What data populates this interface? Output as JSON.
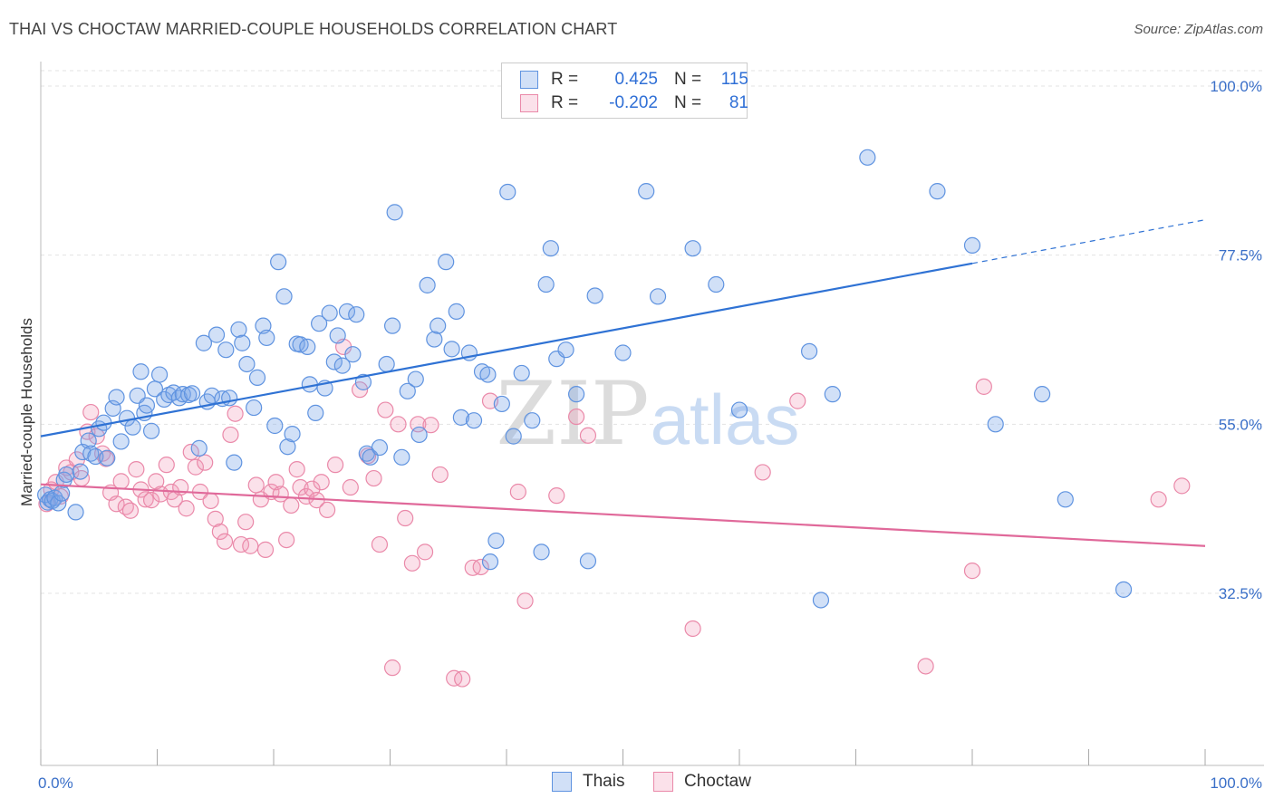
{
  "header": {
    "title": "THAI VS CHOCTAW MARRIED-COUPLE HOUSEHOLDS CORRELATION CHART",
    "source": "Source: ZipAtlas.com"
  },
  "legend": {
    "rows": [
      {
        "r_label": "R =",
        "r_value": "0.425",
        "n_label": "N =",
        "n_value": "115",
        "color": "#7aa7e8"
      },
      {
        "r_label": "R =",
        "r_value": "-0.202",
        "n_label": "N =",
        "n_value": "81",
        "color": "#f29bb8"
      }
    ]
  },
  "bottom_legend": {
    "items": [
      {
        "label": "Thais",
        "color": "#7aa7e8"
      },
      {
        "label": "Choctaw",
        "color": "#f29bb8"
      }
    ]
  },
  "colors": {
    "thai_fill": "rgba(122,167,232,0.35)",
    "thai_stroke": "#5f93e0",
    "thai_line": "#2f72d4",
    "choctaw_fill": "rgba(242,155,184,0.30)",
    "choctaw_stroke": "#ea89a9",
    "choctaw_line": "#e0699a",
    "grid": "#e3e3e3",
    "tick_label": "#3a6fc8"
  },
  "chart_data": {
    "type": "scatter",
    "title": "THAI VS CHOCTAW MARRIED-COUPLE HOUSEHOLDS CORRELATION CHART",
    "xlabel": "",
    "ylabel": "Married-couple Households",
    "xlim": [
      0,
      100
    ],
    "ylim": [
      12.5,
      102.5
    ],
    "x_tick_labels": [
      {
        "value": 0,
        "label": "0.0%"
      },
      {
        "value": 100,
        "label": "100.0%"
      }
    ],
    "y_tick_labels": [
      {
        "value": 100.0,
        "label": "100.0%"
      },
      {
        "value": 77.5,
        "label": "77.5%"
      },
      {
        "value": 55.0,
        "label": "55.0%"
      },
      {
        "value": 32.5,
        "label": "32.5%"
      }
    ],
    "watermark": {
      "zip": "ZIP",
      "atlas": "atlas"
    },
    "series": [
      {
        "name": "Thais",
        "r": 0.425,
        "n": 115,
        "trend": {
          "x0": 0,
          "y0": 53.4,
          "x1": 80,
          "y1": 76.4,
          "dash_to_x": 100,
          "dash_to_y": 82.2
        },
        "points": [
          [
            0.4,
            45.6
          ],
          [
            0.6,
            44.6
          ],
          [
            0.8,
            45.0
          ],
          [
            1.0,
            44.8
          ],
          [
            1.2,
            45.2
          ],
          [
            1.5,
            44.5
          ],
          [
            1.8,
            45.8
          ],
          [
            2.0,
            47.6
          ],
          [
            2.2,
            48.3
          ],
          [
            3.0,
            43.3
          ],
          [
            3.4,
            48.7
          ],
          [
            3.6,
            51.3
          ],
          [
            4.1,
            52.8
          ],
          [
            4.3,
            51.1
          ],
          [
            4.7,
            50.7
          ],
          [
            5.0,
            54.4
          ],
          [
            5.4,
            55.2
          ],
          [
            5.7,
            50.5
          ],
          [
            6.2,
            57.1
          ],
          [
            6.5,
            58.6
          ],
          [
            6.9,
            52.7
          ],
          [
            7.4,
            55.8
          ],
          [
            7.9,
            54.6
          ],
          [
            8.3,
            58.8
          ],
          [
            8.6,
            62.0
          ],
          [
            8.9,
            56.5
          ],
          [
            9.1,
            57.5
          ],
          [
            9.5,
            54.1
          ],
          [
            9.8,
            59.7
          ],
          [
            10.2,
            61.6
          ],
          [
            10.6,
            58.3
          ],
          [
            11.0,
            58.9
          ],
          [
            11.4,
            59.2
          ],
          [
            11.9,
            58.5
          ],
          [
            12.2,
            59.0
          ],
          [
            12.7,
            58.9
          ],
          [
            13.0,
            59.1
          ],
          [
            13.6,
            51.8
          ],
          [
            14.0,
            65.8
          ],
          [
            14.3,
            58.0
          ],
          [
            14.7,
            58.8
          ],
          [
            15.1,
            66.9
          ],
          [
            15.6,
            58.4
          ],
          [
            15.9,
            64.9
          ],
          [
            16.2,
            58.5
          ],
          [
            16.6,
            49.9
          ],
          [
            17.0,
            67.6
          ],
          [
            17.3,
            65.8
          ],
          [
            17.7,
            63.0
          ],
          [
            18.3,
            57.2
          ],
          [
            18.6,
            61.2
          ],
          [
            19.1,
            68.1
          ],
          [
            19.4,
            66.5
          ],
          [
            20.1,
            54.8
          ],
          [
            20.4,
            76.6
          ],
          [
            20.9,
            72.0
          ],
          [
            21.2,
            52.0
          ],
          [
            21.6,
            53.7
          ],
          [
            22.0,
            65.7
          ],
          [
            22.3,
            65.6
          ],
          [
            22.9,
            65.3
          ],
          [
            23.1,
            60.3
          ],
          [
            23.6,
            56.5
          ],
          [
            23.9,
            68.4
          ],
          [
            24.4,
            59.8
          ],
          [
            24.8,
            69.8
          ],
          [
            25.2,
            63.3
          ],
          [
            25.5,
            66.8
          ],
          [
            25.9,
            62.8
          ],
          [
            26.3,
            70.0
          ],
          [
            26.8,
            64.3
          ],
          [
            27.1,
            69.6
          ],
          [
            27.7,
            60.6
          ],
          [
            28.0,
            51.1
          ],
          [
            28.3,
            50.6
          ],
          [
            29.1,
            51.9
          ],
          [
            29.7,
            63.0
          ],
          [
            30.2,
            68.1
          ],
          [
            30.4,
            83.2
          ],
          [
            31.0,
            50.6
          ],
          [
            31.5,
            59.4
          ],
          [
            32.2,
            61.0
          ],
          [
            32.5,
            53.6
          ],
          [
            33.2,
            73.5
          ],
          [
            33.8,
            66.3
          ],
          [
            34.1,
            68.1
          ],
          [
            34.8,
            76.6
          ],
          [
            35.3,
            65.0
          ],
          [
            35.7,
            70.0
          ],
          [
            36.1,
            55.9
          ],
          [
            36.8,
            64.5
          ],
          [
            37.2,
            55.5
          ],
          [
            37.9,
            62.0
          ],
          [
            38.4,
            61.6
          ],
          [
            39.1,
            39.5
          ],
          [
            38.6,
            36.7
          ],
          [
            39.6,
            57.7
          ],
          [
            40.1,
            85.9
          ],
          [
            40.6,
            53.4
          ],
          [
            41.3,
            61.8
          ],
          [
            42.2,
            55.5
          ],
          [
            43.0,
            38.0
          ],
          [
            43.4,
            73.6
          ],
          [
            43.8,
            78.4
          ],
          [
            44.3,
            63.7
          ],
          [
            45.1,
            64.9
          ],
          [
            46.0,
            59.0
          ],
          [
            47.0,
            36.8
          ],
          [
            47.6,
            72.1
          ],
          [
            50.0,
            64.5
          ],
          [
            52.0,
            86.0
          ],
          [
            53.0,
            72.0
          ],
          [
            56.0,
            78.4
          ],
          [
            58.0,
            73.6
          ],
          [
            60.0,
            56.9
          ],
          [
            66.0,
            64.7
          ],
          [
            68.0,
            59.0
          ],
          [
            67.0,
            31.6
          ],
          [
            71.0,
            90.5
          ],
          [
            77.0,
            86.0
          ],
          [
            82.0,
            55.0
          ],
          [
            93.0,
            33.0
          ],
          [
            80.0,
            78.8
          ],
          [
            86.0,
            59.0
          ],
          [
            88.0,
            45.0
          ]
        ]
      },
      {
        "name": "Choctaw",
        "r": -0.202,
        "n": 81,
        "trend": {
          "x0": 0,
          "y0": 47.0,
          "x1": 100,
          "y1": 38.8
        },
        "points": [
          [
            0.5,
            44.4
          ],
          [
            0.9,
            46.3
          ],
          [
            1.3,
            47.3
          ],
          [
            1.7,
            45.4
          ],
          [
            2.2,
            49.2
          ],
          [
            2.6,
            48.6
          ],
          [
            3.1,
            50.3
          ],
          [
            3.5,
            47.8
          ],
          [
            4.0,
            54.0
          ],
          [
            4.3,
            56.6
          ],
          [
            4.8,
            53.4
          ],
          [
            5.3,
            51.1
          ],
          [
            5.6,
            50.4
          ],
          [
            6.0,
            45.9
          ],
          [
            6.5,
            44.4
          ],
          [
            6.9,
            47.4
          ],
          [
            7.3,
            44.0
          ],
          [
            7.7,
            43.5
          ],
          [
            8.2,
            49.0
          ],
          [
            8.6,
            46.3
          ],
          [
            9.0,
            45.0
          ],
          [
            9.5,
            44.9
          ],
          [
            9.9,
            47.4
          ],
          [
            10.3,
            45.7
          ],
          [
            10.8,
            49.6
          ],
          [
            11.2,
            46.0
          ],
          [
            11.5,
            45.0
          ],
          [
            12.0,
            46.6
          ],
          [
            12.5,
            43.8
          ],
          [
            12.9,
            51.3
          ],
          [
            13.3,
            49.3
          ],
          [
            13.7,
            46.0
          ],
          [
            14.1,
            49.9
          ],
          [
            14.6,
            44.8
          ],
          [
            15.0,
            42.4
          ],
          [
            15.4,
            40.7
          ],
          [
            15.8,
            39.4
          ],
          [
            16.3,
            53.6
          ],
          [
            16.7,
            56.4
          ],
          [
            17.2,
            39.0
          ],
          [
            17.6,
            42.0
          ],
          [
            18.0,
            38.8
          ],
          [
            18.5,
            46.9
          ],
          [
            18.9,
            45.0
          ],
          [
            19.3,
            38.3
          ],
          [
            19.8,
            46.0
          ],
          [
            20.2,
            47.3
          ],
          [
            20.6,
            45.7
          ],
          [
            21.1,
            39.6
          ],
          [
            21.5,
            44.2
          ],
          [
            22.0,
            49.0
          ],
          [
            22.3,
            46.6
          ],
          [
            22.8,
            45.4
          ],
          [
            23.3,
            46.4
          ],
          [
            23.7,
            44.9
          ],
          [
            24.1,
            47.3
          ],
          [
            24.6,
            43.6
          ],
          [
            25.3,
            49.6
          ],
          [
            26.0,
            65.3
          ],
          [
            26.6,
            46.6
          ],
          [
            27.4,
            59.6
          ],
          [
            28.1,
            50.8
          ],
          [
            28.6,
            47.8
          ],
          [
            29.1,
            39.0
          ],
          [
            29.6,
            56.9
          ],
          [
            30.2,
            22.6
          ],
          [
            30.7,
            55.0
          ],
          [
            31.3,
            42.5
          ],
          [
            31.9,
            36.5
          ],
          [
            32.4,
            55.0
          ],
          [
            33.0,
            38.0
          ],
          [
            33.5,
            54.9
          ],
          [
            34.3,
            48.3
          ],
          [
            35.5,
            21.2
          ],
          [
            36.2,
            21.1
          ],
          [
            37.1,
            35.9
          ],
          [
            37.8,
            36.0
          ],
          [
            38.6,
            58.1
          ],
          [
            41.0,
            46.0
          ],
          [
            41.6,
            31.5
          ],
          [
            44.3,
            45.5
          ],
          [
            46.0,
            56.0
          ],
          [
            47.0,
            53.5
          ],
          [
            56.0,
            27.8
          ],
          [
            62.0,
            48.6
          ],
          [
            65.0,
            58.1
          ],
          [
            80.0,
            35.5
          ],
          [
            81.0,
            60.0
          ],
          [
            96.0,
            45.0
          ],
          [
            98.0,
            46.8
          ],
          [
            76.0,
            22.8
          ]
        ]
      }
    ]
  }
}
